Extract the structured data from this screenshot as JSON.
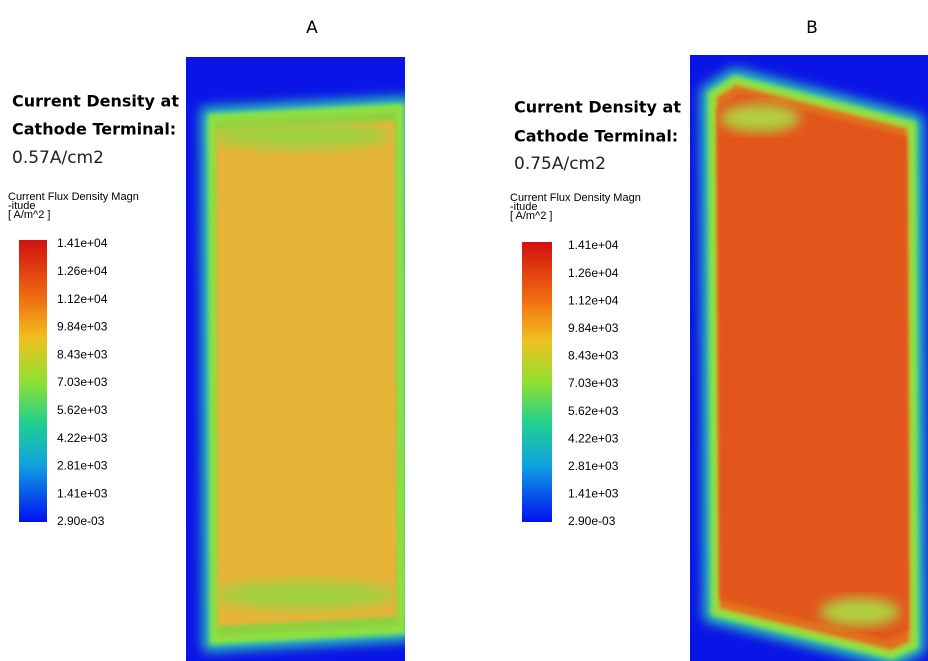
{
  "panels": [
    {
      "label": "A",
      "title": [
        "Current Density at",
        "Cathode Terminal:"
      ],
      "value": "0.57A/cm2",
      "legend_title": [
        "Current Flux Density Magn",
        "-itude",
        "[ A/m^2 ]"
      ],
      "legend_ticks": [
        "1.41e+04",
        "1.26e+04",
        "1.12e+04",
        "9.84e+03",
        "8.43e+03",
        "7.03e+03",
        "5.62e+03",
        "4.22e+03",
        "2.81e+03",
        "1.41e+03",
        "2.90e-03"
      ]
    },
    {
      "label": "B",
      "title": [
        "Current Density at",
        "Cathode Terminal:"
      ],
      "value": "0.75A/cm2",
      "legend_title": [
        "Current Flux Density Magn",
        "-itude",
        "[ A/m^2 ]"
      ],
      "legend_ticks": [
        "1.41e+04",
        "1.26e+04",
        "1.12e+04",
        "9.84e+03",
        "8.43e+03",
        "7.03e+03",
        "5.62e+03",
        "4.22e+03",
        "2.81e+03",
        "1.41e+03",
        "2.90e-03"
      ]
    }
  ]
}
